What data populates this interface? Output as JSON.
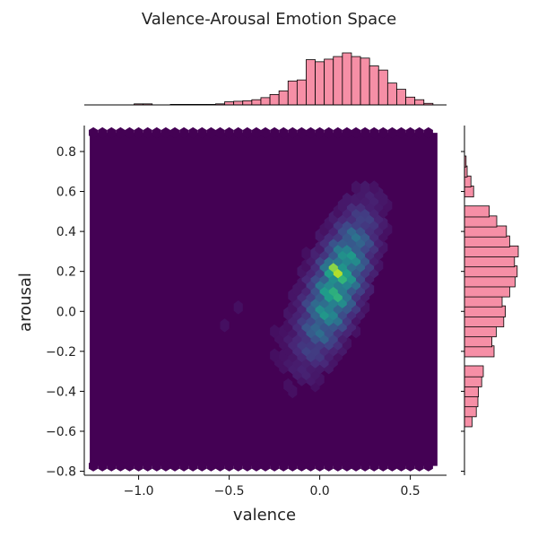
{
  "chart_data": {
    "type": "hexbin",
    "title": "Valence-Arousal Emotion Space",
    "xlabel": "valence",
    "ylabel": "arousal",
    "xlim": [
      -1.3,
      0.7
    ],
    "ylim": [
      -0.82,
      0.93
    ],
    "x_ticks": [
      "−1.0",
      "−0.5",
      "0.0",
      "0.5"
    ],
    "x_tick_values": [
      -1.0,
      -0.5,
      0.0,
      0.5
    ],
    "y_ticks": [
      "−0.8",
      "−0.6",
      "−0.4",
      "−0.2",
      "0.0",
      "0.2",
      "0.4",
      "0.6",
      "0.8"
    ],
    "y_tick_values": [
      -0.8,
      -0.6,
      -0.4,
      -0.2,
      0.0,
      0.2,
      0.4,
      0.6,
      0.8
    ],
    "hexbin_extent": {
      "x": [
        -1.25,
        0.63
      ],
      "y": [
        -0.76,
        0.88
      ]
    },
    "colormap": "viridis",
    "background_color": "#440154",
    "peak": {
      "x": 0.08,
      "y": 0.22
    },
    "main_cluster": {
      "x": 0.1,
      "y": 0.15,
      "sx": 0.12,
      "sy": 0.22,
      "correlation": 0.65
    },
    "marginal_color": "#f68fa6",
    "marginal_x": {
      "bin_width": 0.05,
      "bins": [
        {
          "x": -1.0,
          "c": 0.02
        },
        {
          "x": -0.95,
          "c": 0.02
        },
        {
          "x": -0.8,
          "c": 0.01
        },
        {
          "x": -0.75,
          "c": 0.01
        },
        {
          "x": -0.7,
          "c": 0.01
        },
        {
          "x": -0.65,
          "c": 0.01
        },
        {
          "x": -0.6,
          "c": 0.01
        },
        {
          "x": -0.55,
          "c": 0.02
        },
        {
          "x": -0.5,
          "c": 0.06
        },
        {
          "x": -0.45,
          "c": 0.07
        },
        {
          "x": -0.4,
          "c": 0.08
        },
        {
          "x": -0.35,
          "c": 0.1
        },
        {
          "x": -0.3,
          "c": 0.14
        },
        {
          "x": -0.25,
          "c": 0.2
        },
        {
          "x": -0.2,
          "c": 0.27
        },
        {
          "x": -0.15,
          "c": 0.46
        },
        {
          "x": -0.1,
          "c": 0.48
        },
        {
          "x": -0.05,
          "c": 0.87
        },
        {
          "x": 0.0,
          "c": 0.83
        },
        {
          "x": 0.05,
          "c": 0.88
        },
        {
          "x": 0.1,
          "c": 0.93
        },
        {
          "x": 0.15,
          "c": 1.0
        },
        {
          "x": 0.2,
          "c": 0.93
        },
        {
          "x": 0.25,
          "c": 0.9
        },
        {
          "x": 0.3,
          "c": 0.75
        },
        {
          "x": 0.35,
          "c": 0.67
        },
        {
          "x": 0.4,
          "c": 0.42
        },
        {
          "x": 0.45,
          "c": 0.3
        },
        {
          "x": 0.5,
          "c": 0.15
        },
        {
          "x": 0.55,
          "c": 0.1
        },
        {
          "x": 0.6,
          "c": 0.03
        }
      ]
    },
    "marginal_y": {
      "bin_width": 0.055,
      "bins": [
        {
          "y": -0.55,
          "c": 0.14
        },
        {
          "y": -0.5,
          "c": 0.22
        },
        {
          "y": -0.45,
          "c": 0.25
        },
        {
          "y": -0.4,
          "c": 0.26
        },
        {
          "y": -0.35,
          "c": 0.32
        },
        {
          "y": -0.3,
          "c": 0.35
        },
        {
          "y": -0.2,
          "c": 0.55
        },
        {
          "y": -0.15,
          "c": 0.51
        },
        {
          "y": -0.1,
          "c": 0.59
        },
        {
          "y": -0.05,
          "c": 0.73
        },
        {
          "y": 0.0,
          "c": 0.76
        },
        {
          "y": 0.05,
          "c": 0.7
        },
        {
          "y": 0.1,
          "c": 0.84
        },
        {
          "y": 0.15,
          "c": 0.94
        },
        {
          "y": 0.2,
          "c": 0.98
        },
        {
          "y": 0.25,
          "c": 0.93
        },
        {
          "y": 0.3,
          "c": 1.0
        },
        {
          "y": 0.35,
          "c": 0.84
        },
        {
          "y": 0.4,
          "c": 0.78
        },
        {
          "y": 0.45,
          "c": 0.6
        },
        {
          "y": 0.5,
          "c": 0.46
        },
        {
          "y": 0.6,
          "c": 0.17
        },
        {
          "y": 0.65,
          "c": 0.12
        },
        {
          "y": 0.7,
          "c": 0.05
        },
        {
          "y": 0.75,
          "c": 0.03
        }
      ]
    }
  }
}
